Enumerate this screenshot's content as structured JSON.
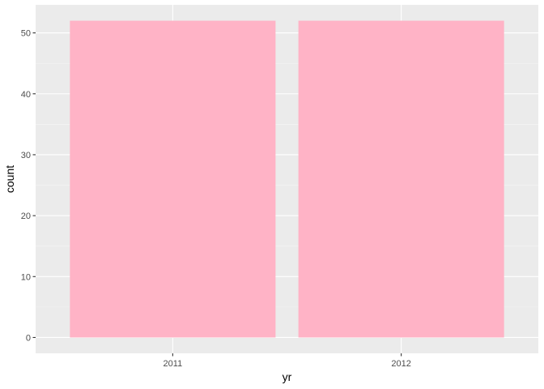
{
  "chart_data": {
    "type": "bar",
    "title": "",
    "xlabel": "yr",
    "ylabel": "count",
    "categories": [
      "2011",
      "2012"
    ],
    "values": [
      52,
      52
    ],
    "ylim": [
      -2.6,
      54.6
    ],
    "yticks": [
      0,
      10,
      20,
      30,
      40,
      50
    ],
    "yticks_minor": [
      5,
      15,
      25,
      35,
      45
    ],
    "grid": true,
    "legend": "none",
    "colors": {
      "bar": "#FFB3C6",
      "panel": "#EBEBEB",
      "grid_major": "#FFFFFF",
      "grid_minor": "#F5F5F5",
      "tick": "#333333",
      "tick_text": "#4D4D4D",
      "background": "#FFFFFF"
    }
  }
}
